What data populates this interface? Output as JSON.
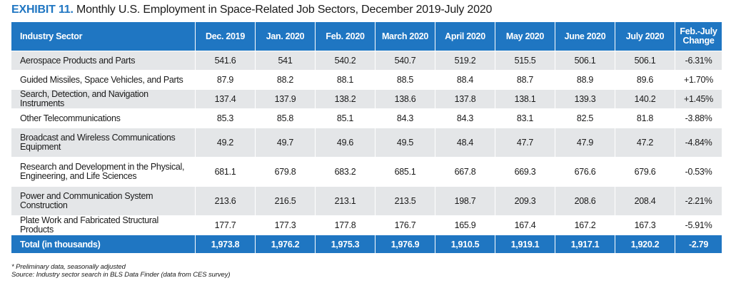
{
  "title": {
    "label": "EXHIBIT 11.",
    "text": "Monthly U.S. Employment in Space-Related Job Sectors, December 2019-July 2020"
  },
  "table": {
    "header": {
      "sector": "Industry Sector",
      "months": [
        "Dec. 2019",
        "Jan. 2020",
        "Feb. 2020",
        "March 2020",
        "April 2020",
        "May 2020",
        "June 2020",
        "July 2020"
      ],
      "change_line1": "Feb.-July",
      "change_line2": "Change"
    },
    "rows": [
      {
        "sector": "Aerospace Products and Parts",
        "sector_line2": "",
        "values": [
          "541.6",
          "541",
          "540.2",
          "540.7",
          "519.2",
          "515.5",
          "506.1",
          "506.1"
        ],
        "change": "-6.31%"
      },
      {
        "sector": "Guided Missiles, Space Vehicles, and Parts",
        "sector_line2": "",
        "values": [
          "87.9",
          "88.2",
          "88.1",
          "88.5",
          "88.4",
          "88.7",
          "88.9",
          "89.6"
        ],
        "change": "+1.70%"
      },
      {
        "sector": "Search, Detection, and Navigation Instruments",
        "sector_line2": "",
        "values": [
          "137.4",
          "137.9",
          "138.2",
          "138.6",
          "137.8",
          "138.1",
          "139.3",
          "140.2"
        ],
        "change": "+1.45%"
      },
      {
        "sector": "Other Telecommunications",
        "sector_line2": "",
        "values": [
          "85.3",
          "85.8",
          "85.1",
          "84.3",
          "84.3",
          "83.1",
          "82.5",
          "81.8"
        ],
        "change": "-3.88%"
      },
      {
        "sector": "Broadcast and Wireless Communications",
        "sector_line2": "Equipment",
        "values": [
          "49.2",
          "49.7",
          "49.6",
          "49.5",
          "48.4",
          "47.7",
          "47.9",
          "47.2"
        ],
        "change": "-4.84%"
      },
      {
        "sector": "Research and Development in the Physical,",
        "sector_line2": "Engineering, and Life Sciences",
        "values": [
          "681.1",
          "679.8",
          "683.2",
          "685.1",
          "667.8",
          "669.3",
          "676.6",
          "679.6"
        ],
        "change": "-0.53%"
      },
      {
        "sector": "Power and Communication System",
        "sector_line2": "Construction",
        "values": [
          "213.6",
          "216.5",
          "213.1",
          "213.5",
          "198.7",
          "209.3",
          "208.6",
          "208.4"
        ],
        "change": "-2.21%"
      },
      {
        "sector": "Plate Work and Fabricated Structural Products",
        "sector_line2": "",
        "values": [
          "177.7",
          "177.3",
          "177.8",
          "176.7",
          "165.9",
          "167.4",
          "167.2",
          "167.3"
        ],
        "change": "-5.91%"
      }
    ],
    "total": {
      "sector": "Total (in thousands)",
      "values": [
        "1,973.8",
        "1,976.2",
        "1,975.3",
        "1,976.9",
        "1,910.5",
        "1,919.1",
        "1,917.1",
        "1,920.2"
      ],
      "change": "-2.79"
    }
  },
  "notes": {
    "preliminary": "* Preliminary data, seasonally adjusted",
    "source": "Source: Industry sector search in BLS Data Finder (data from CES survey)"
  },
  "colors": {
    "header_blue": "#1f76c2",
    "row_shade": "#e4e6e8"
  }
}
